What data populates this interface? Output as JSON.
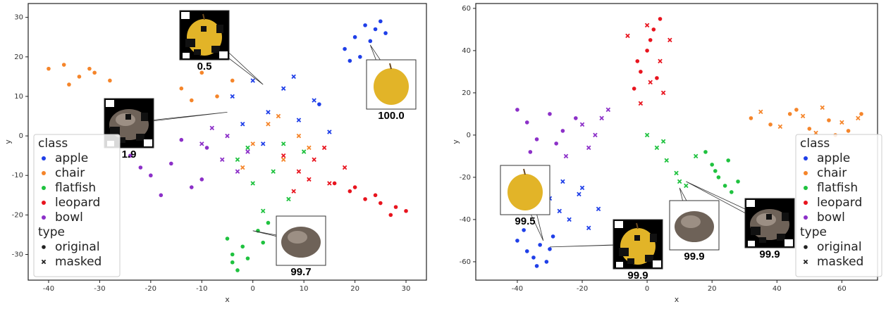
{
  "chart_data": [
    {
      "type": "scatter",
      "xlabel": "x",
      "ylabel": "y",
      "xlim": [
        -44,
        34
      ],
      "ylim": [
        -36.5,
        33.5
      ],
      "xticks": [
        -40,
        -30,
        -20,
        -10,
        0,
        10,
        20,
        30
      ],
      "yticks": [
        -30,
        -20,
        -10,
        0,
        10,
        20,
        30
      ],
      "legend": "lower left",
      "legend_class_title": "class",
      "legend_type_title": "type",
      "classes": [
        {
          "name": "apple",
          "color": "#1f3fe8"
        },
        {
          "name": "chair",
          "color": "#f5852a"
        },
        {
          "name": "flatfish",
          "color": "#1fc23f"
        },
        {
          "name": "leopard",
          "color": "#e8141e"
        },
        {
          "name": "bowl",
          "color": "#8c30c8"
        }
      ],
      "types": [
        {
          "name": "original",
          "marker": "circle"
        },
        {
          "name": "masked",
          "marker": "x"
        }
      ],
      "series": [
        {
          "class": 0,
          "type": 0,
          "x": [
            18,
            20,
            22,
            23,
            24,
            25,
            21,
            19,
            26,
            13
          ],
          "y": [
            22,
            25,
            28,
            24,
            27,
            29,
            20,
            19,
            26,
            8
          ]
        },
        {
          "class": 0,
          "type": 1,
          "x": [
            -4,
            0,
            3,
            6,
            9,
            12,
            2,
            -2,
            8,
            15
          ],
          "y": [
            10,
            14,
            6,
            12,
            4,
            9,
            -2,
            3,
            15,
            1
          ]
        },
        {
          "class": 1,
          "type": 0,
          "x": [
            -40,
            -37,
            -34,
            -31,
            -28,
            -36,
            -14,
            -10,
            -7,
            -4,
            -12,
            -32
          ],
          "y": [
            17,
            18,
            15,
            16,
            14,
            13,
            12,
            16,
            10,
            14,
            9,
            17
          ]
        },
        {
          "class": 1,
          "type": 1,
          "x": [
            0,
            3,
            6,
            9,
            -2,
            5,
            11
          ],
          "y": [
            -2,
            3,
            -6,
            0,
            -8,
            5,
            -3
          ]
        },
        {
          "class": 2,
          "type": 0,
          "x": [
            -5,
            -4,
            -3,
            -2,
            -4,
            1,
            2,
            -1,
            3
          ],
          "y": [
            -26,
            -30,
            -34,
            -28,
            -32,
            -24,
            -27,
            -31,
            -22
          ]
        },
        {
          "class": 2,
          "type": 1,
          "x": [
            -3,
            0,
            4,
            7,
            10,
            2,
            6,
            -1
          ],
          "y": [
            -6,
            -12,
            -9,
            -16,
            -4,
            -19,
            -2,
            -3
          ]
        },
        {
          "class": 3,
          "type": 0,
          "x": [
            16,
            19,
            22,
            25,
            28,
            30,
            24,
            20,
            27
          ],
          "y": [
            -12,
            -14,
            -16,
            -17,
            -18,
            -19,
            -15,
            -13,
            -20
          ]
        },
        {
          "class": 3,
          "type": 1,
          "x": [
            6,
            9,
            12,
            15,
            18,
            8,
            14,
            11
          ],
          "y": [
            -5,
            -9,
            -6,
            -12,
            -8,
            -14,
            -3,
            -11
          ]
        },
        {
          "class": 4,
          "type": 0,
          "x": [
            -24,
            -20,
            -16,
            -12,
            -9,
            -18,
            -14,
            -22,
            -10
          ],
          "y": [
            -5,
            -10,
            -7,
            -13,
            -3,
            -15,
            -1,
            -8,
            -11
          ]
        },
        {
          "class": 4,
          "type": 1,
          "x": [
            -10,
            -6,
            -3,
            -8,
            -1,
            -5
          ],
          "y": [
            -2,
            -6,
            -9,
            2,
            -4,
            0
          ]
        }
      ],
      "annotations": [
        {
          "text": "0.5",
          "x": 2,
          "y": 13
        },
        {
          "text": "1.9",
          "x": -5,
          "y": 6
        },
        {
          "text": "100.0",
          "x": 23,
          "y": 23
        },
        {
          "text": "99.7",
          "x": 0,
          "y": -24
        }
      ]
    },
    {
      "type": "scatter",
      "xlabel": "x",
      "ylabel": "y",
      "xlim": [
        -52.8,
        71
      ],
      "ylim": [
        -68.7,
        62.3
      ],
      "xticks": [
        -40,
        -20,
        0,
        20,
        40,
        60
      ],
      "yticks": [
        -60,
        -40,
        -20,
        0,
        20,
        40,
        60
      ],
      "legend": "lower right",
      "legend_class_title": "class",
      "legend_type_title": "type",
      "classes": [
        {
          "name": "apple",
          "color": "#1f3fe8"
        },
        {
          "name": "chair",
          "color": "#f5852a"
        },
        {
          "name": "flatfish",
          "color": "#1fc23f"
        },
        {
          "name": "leopard",
          "color": "#e8141e"
        },
        {
          "name": "bowl",
          "color": "#8c30c8"
        }
      ],
      "types": [
        {
          "name": "original",
          "marker": "circle"
        },
        {
          "name": "masked",
          "marker": "x"
        }
      ],
      "series": [
        {
          "class": 0,
          "type": 0,
          "x": [
            -40,
            -37,
            -35,
            -33,
            -31,
            -29,
            -38,
            -34,
            -30
          ],
          "y": [
            -50,
            -55,
            -58,
            -52,
            -60,
            -48,
            -45,
            -62,
            -54
          ]
        },
        {
          "class": 0,
          "type": 1,
          "x": [
            -30,
            -27,
            -24,
            -21,
            -18,
            -15,
            -26,
            -20
          ],
          "y": [
            -30,
            -36,
            -40,
            -28,
            -44,
            -35,
            -22,
            -25
          ]
        },
        {
          "class": 1,
          "type": 0,
          "x": [
            32,
            38,
            44,
            50,
            56,
            62,
            66,
            46,
            58
          ],
          "y": [
            8,
            5,
            10,
            3,
            7,
            2,
            10,
            12,
            0
          ]
        },
        {
          "class": 1,
          "type": 1,
          "x": [
            35,
            41,
            48,
            54,
            60,
            65,
            52
          ],
          "y": [
            11,
            4,
            9,
            13,
            6,
            8,
            1
          ]
        },
        {
          "class": 2,
          "type": 0,
          "x": [
            18,
            20,
            22,
            24,
            26,
            28,
            21,
            25
          ],
          "y": [
            -8,
            -14,
            -20,
            -24,
            -27,
            -22,
            -17,
            -12
          ]
        },
        {
          "class": 2,
          "type": 1,
          "x": [
            0,
            3,
            6,
            9,
            12,
            15,
            5,
            10
          ],
          "y": [
            0,
            -6,
            -12,
            -18,
            -24,
            -10,
            -3,
            -22
          ]
        },
        {
          "class": 3,
          "type": 0,
          "x": [
            -4,
            -2,
            0,
            2,
            4,
            1,
            -3,
            3
          ],
          "y": [
            22,
            30,
            40,
            50,
            55,
            45,
            35,
            27
          ]
        },
        {
          "class": 3,
          "type": 1,
          "x": [
            -2,
            1,
            4,
            7,
            0,
            5,
            -6
          ],
          "y": [
            15,
            25,
            35,
            45,
            52,
            20,
            47
          ]
        },
        {
          "class": 4,
          "type": 0,
          "x": [
            -40,
            -37,
            -34,
            -30,
            -26,
            -22,
            -36,
            -28
          ],
          "y": [
            12,
            6,
            -2,
            10,
            2,
            8,
            -8,
            -4
          ]
        },
        {
          "class": 4,
          "type": 1,
          "x": [
            -25,
            -20,
            -16,
            -12,
            -18,
            -14
          ],
          "y": [
            -10,
            5,
            0,
            12,
            -6,
            8
          ]
        }
      ],
      "annotations": [
        {
          "text": "99.5",
          "x": -32,
          "y": -50
        },
        {
          "text": "99.9",
          "x": -30,
          "y": -53
        },
        {
          "text": "99.9",
          "x": 10,
          "y": -25
        },
        {
          "text": "99.9",
          "x": 12,
          "y": -22
        }
      ]
    }
  ]
}
